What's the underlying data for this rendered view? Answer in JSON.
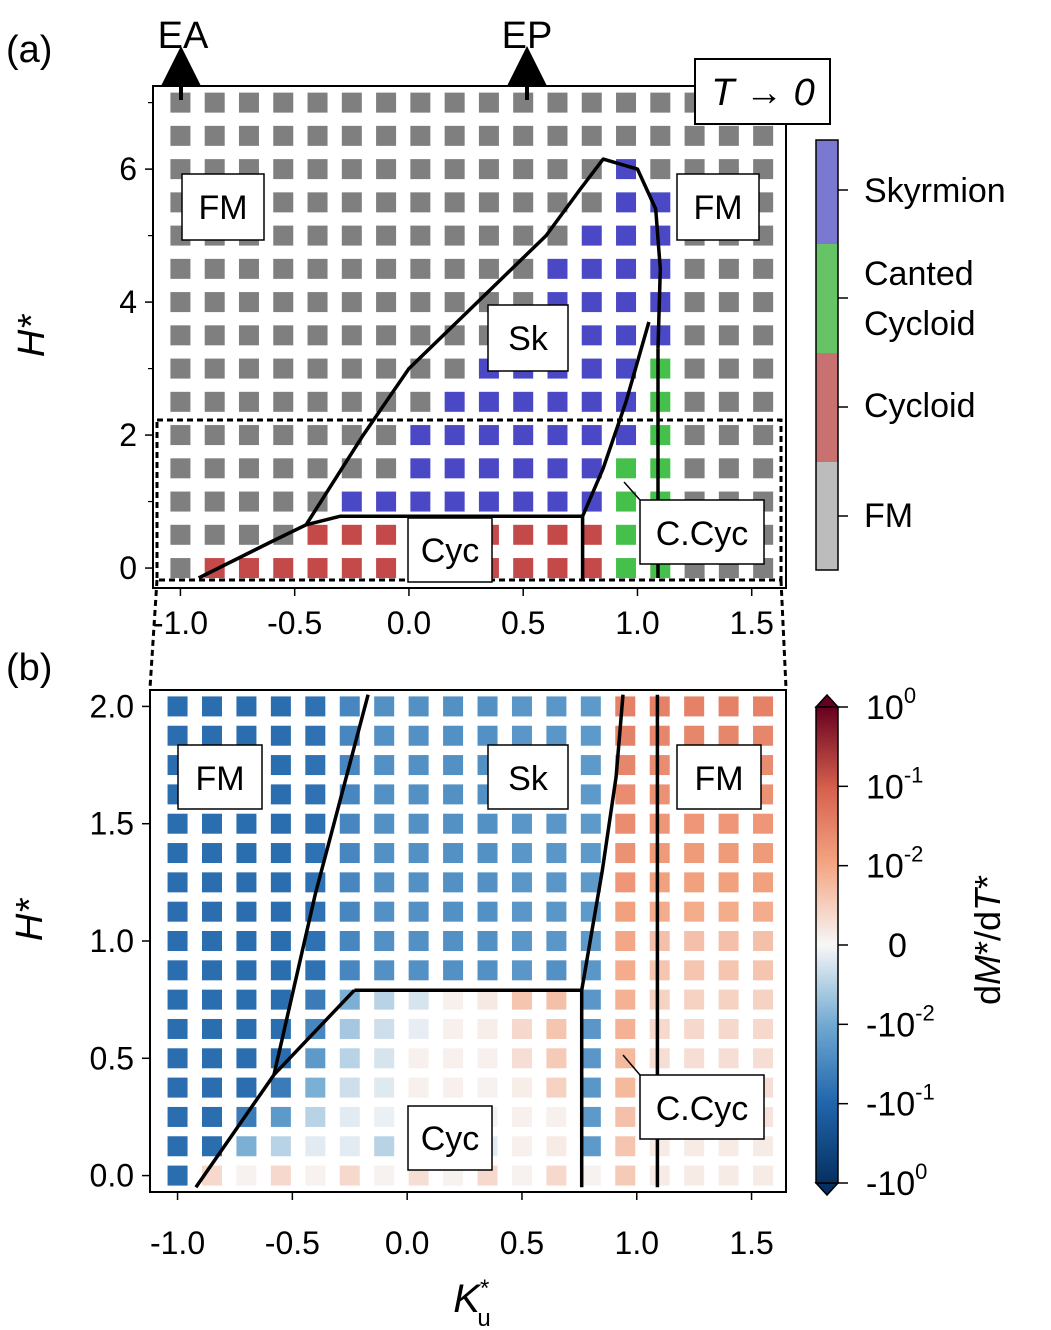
{
  "figure": {
    "panel_a": "(a)",
    "panel_b": "(b)",
    "arrow_labels": [
      "EA",
      "EP"
    ],
    "temperature_label": "T → 0"
  },
  "colors": {
    "fm": "#7f7f7f",
    "skyrmion": "#4a48c4",
    "cycloid": "#c44a4a",
    "canted_cycloid": "#45c04a",
    "cb_fm": "#bcbcbc",
    "cb_skyrmion": "#7b78d2",
    "cb_canted": "#66c466",
    "cb_cycloid": "#c97070"
  },
  "chart_data": [
    {
      "type": "heatmap",
      "title": "T → 0",
      "xlabel": "K*u",
      "ylabel": "H*",
      "xlim": [
        -1.12,
        1.65
      ],
      "ylim": [
        -0.3,
        7.25
      ],
      "x": [
        -1.0,
        -0.85,
        -0.7,
        -0.55,
        -0.4,
        -0.25,
        -0.1,
        0.05,
        0.2,
        0.35,
        0.5,
        0.65,
        0.8,
        0.95,
        1.1,
        1.25,
        1.4,
        1.55
      ],
      "y": [
        0,
        0.5,
        1.0,
        1.5,
        2.0,
        2.5,
        3.0,
        3.5,
        4.0,
        4.5,
        5.0,
        5.5,
        6.0,
        6.5,
        7.0
      ],
      "x_ticks": [
        -1.0,
        -0.5,
        0.0,
        0.5,
        1.0,
        1.5
      ],
      "x_tick_labels": [
        "-1.0",
        "-0.5",
        "0.0",
        "0.5",
        "1.0",
        "1.5"
      ],
      "y_ticks": [
        0,
        2,
        4,
        6
      ],
      "y_tick_labels": [
        "0",
        "2",
        "4",
        "6"
      ],
      "phase_codes": {
        "F": "FM",
        "S": "Skyrmion",
        "C": "Cycloid",
        "G": "Canted Cycloid"
      },
      "phase_grid": [
        "FCCCCCCCCCCCCGGFFF",
        "FFFFCCCCCCCCCGGFFF",
        "FFFFFSSSSSSSSGGFFF",
        "FFFFFFFSSSSSSGGFFF",
        "FFFFFFFSSSSSSSGFFF",
        "FFFFFFFFSSSSSSGFFF",
        "FFFFFFFFFSSSSSGFFF",
        "FFFFFFFFFFSSSSSFFF",
        "FFFFFFFFFFFSSSSFFF",
        "FFFFFFFFFFFSSSSFFF",
        "FFFFFFFFFFFFSSSFFF",
        "FFFFFFFFFFFFFSSFFF",
        "FFFFFFFFFFFFFSFFFF",
        "FFFFFFFFFFFFFFFFFF",
        "FFFFFFFFFFFFFFFFFF"
      ],
      "phase_labels": [
        "FM",
        "FM",
        "Sk",
        "Cyc",
        "C.Cyc"
      ],
      "colorbar": {
        "labels": [
          "Skyrmion",
          "Canted",
          "Cycloid",
          "Cycloid",
          "FM"
        ]
      },
      "boundaries": [
        {
          "name": "cycloid-skyrmion",
          "x": [
            -0.92,
            -0.6,
            -0.45,
            -0.3,
            0.0,
            0.5,
            0.76
          ],
          "y": [
            -0.15,
            0.4,
            0.65,
            0.78,
            0.78,
            0.78,
            0.78
          ]
        },
        {
          "name": "skyrmion-fm",
          "x": [
            -0.45,
            -0.2,
            0.0,
            0.3,
            0.6,
            0.75,
            0.85,
            1.0,
            1.08,
            1.1,
            1.09
          ],
          "y": [
            0.65,
            2.0,
            3.0,
            4.0,
            5.0,
            5.7,
            6.15,
            6.0,
            5.4,
            4.5,
            3.3
          ]
        },
        {
          "name": "cycloid-canted",
          "x": [
            0.76,
            0.76
          ],
          "y": [
            0.78,
            -0.2
          ]
        },
        {
          "name": "canted-skyrmion",
          "x": [
            0.76,
            0.85,
            0.95,
            1.05
          ],
          "y": [
            0.78,
            1.5,
            2.5,
            3.7
          ]
        },
        {
          "name": "canted-fm",
          "x": [
            1.09,
            1.09
          ],
          "y": [
            3.3,
            -0.15
          ]
        }
      ]
    },
    {
      "type": "heatmap",
      "xlabel": "K*u",
      "ylabel": "H*",
      "xlim": [
        -1.12,
        1.65
      ],
      "ylim": [
        -0.07,
        2.07
      ],
      "x": [
        -1.0,
        -0.85,
        -0.7,
        -0.55,
        -0.4,
        -0.25,
        -0.1,
        0.05,
        0.2,
        0.35,
        0.5,
        0.65,
        0.8,
        0.95,
        1.1,
        1.25,
        1.4,
        1.55
      ],
      "y": [
        0.0,
        0.125,
        0.25,
        0.375,
        0.5,
        0.625,
        0.75,
        0.875,
        1.0,
        1.125,
        1.25,
        1.375,
        1.5,
        1.625,
        1.75,
        1.875,
        2.0
      ],
      "x_ticks": [
        -1.0,
        -0.5,
        0.0,
        0.5,
        1.0,
        1.5
      ],
      "x_tick_labels": [
        "-1.0",
        "-0.5",
        "0.0",
        "0.5",
        "1.0",
        "1.5"
      ],
      "y_ticks": [
        0.0,
        0.5,
        1.0,
        1.5,
        2.0
      ],
      "y_tick_labels": [
        "0.0",
        "0.5",
        "1.0",
        "1.5",
        "2.0"
      ],
      "colorbar_label": "dM*/dT*",
      "colorbar_ticks": [
        "10^0",
        "10^-1",
        "10^-2",
        "0",
        "-10^-2",
        "-10^-1",
        "-10^0"
      ],
      "phase_labels": [
        "FM",
        "Sk",
        "FM",
        "Cyc",
        "C.Cyc"
      ],
      "value_note": "symlog colour value s in [-1, 1]: -1 = -10^0, 0 = 0, +1 = 10^0",
      "values": [
        [
          -0.62,
          0.12,
          0.02,
          0.12,
          0.02,
          0.12,
          0.02,
          0.1,
          0.02,
          0.12,
          0.02,
          0.12,
          0.02,
          0.18,
          0.05,
          0.05,
          0.05,
          0.05
        ],
        [
          -0.62,
          -0.62,
          -0.3,
          -0.15,
          -0.05,
          -0.05,
          -0.15,
          -0.1,
          -0.03,
          -0.05,
          0.03,
          0.05,
          -0.4,
          0.2,
          0.05,
          0.05,
          0.05,
          0.05
        ],
        [
          -0.62,
          -0.62,
          -0.55,
          -0.4,
          -0.15,
          -0.05,
          -0.03,
          0.02,
          0.02,
          0.02,
          0.03,
          0.03,
          -0.4,
          0.22,
          0.08,
          0.08,
          0.08,
          0.08
        ],
        [
          -0.62,
          -0.62,
          -0.62,
          -0.55,
          -0.3,
          -0.1,
          -0.06,
          0.03,
          0.03,
          0.02,
          0.04,
          0.15,
          -0.42,
          0.25,
          0.1,
          0.1,
          0.1,
          0.1
        ],
        [
          -0.62,
          -0.62,
          -0.62,
          -0.62,
          -0.4,
          -0.15,
          -0.08,
          0.03,
          0.03,
          0.03,
          0.1,
          0.18,
          -0.42,
          0.25,
          0.1,
          0.1,
          0.1,
          0.1
        ],
        [
          -0.62,
          -0.62,
          -0.62,
          -0.62,
          -0.5,
          -0.2,
          -0.1,
          -0.04,
          0.03,
          0.04,
          0.12,
          0.2,
          -0.42,
          0.28,
          0.12,
          0.12,
          0.12,
          0.12
        ],
        [
          -0.62,
          -0.62,
          -0.62,
          -0.62,
          -0.55,
          -0.3,
          -0.15,
          -0.08,
          0.03,
          0.06,
          0.2,
          0.22,
          -0.42,
          0.28,
          0.15,
          0.15,
          0.15,
          0.15
        ],
        [
          -0.62,
          -0.62,
          -0.62,
          -0.62,
          -0.6,
          -0.5,
          -0.45,
          -0.45,
          -0.45,
          -0.45,
          -0.42,
          -0.45,
          -0.42,
          0.3,
          0.2,
          0.2,
          0.2,
          0.2
        ],
        [
          -0.62,
          -0.62,
          -0.62,
          -0.62,
          -0.6,
          -0.5,
          -0.45,
          -0.45,
          -0.45,
          -0.45,
          -0.42,
          -0.42,
          -0.4,
          0.32,
          0.22,
          0.22,
          0.22,
          0.22
        ],
        [
          -0.62,
          -0.62,
          -0.62,
          -0.62,
          -0.6,
          -0.5,
          -0.45,
          -0.45,
          -0.45,
          -0.45,
          -0.42,
          -0.42,
          -0.4,
          0.35,
          0.3,
          0.3,
          0.3,
          0.3
        ],
        [
          -0.62,
          -0.62,
          -0.62,
          -0.62,
          -0.6,
          -0.5,
          -0.45,
          -0.45,
          -0.45,
          -0.45,
          -0.42,
          -0.42,
          -0.4,
          0.4,
          0.35,
          0.35,
          0.35,
          0.35
        ],
        [
          -0.62,
          -0.62,
          -0.62,
          -0.62,
          -0.6,
          -0.5,
          -0.45,
          -0.45,
          -0.45,
          -0.45,
          -0.42,
          -0.42,
          -0.4,
          0.42,
          0.38,
          0.38,
          0.38,
          0.38
        ],
        [
          -0.62,
          -0.62,
          -0.62,
          -0.62,
          -0.6,
          -0.5,
          -0.45,
          -0.45,
          -0.45,
          -0.45,
          -0.42,
          -0.42,
          -0.4,
          0.45,
          0.4,
          0.4,
          0.4,
          0.4
        ],
        [
          -0.62,
          -0.62,
          -0.62,
          -0.62,
          -0.6,
          -0.5,
          -0.45,
          -0.45,
          -0.45,
          -0.45,
          -0.42,
          -0.42,
          -0.4,
          0.45,
          0.42,
          0.42,
          0.42,
          0.42
        ],
        [
          -0.62,
          -0.62,
          -0.62,
          -0.62,
          -0.6,
          -0.5,
          -0.45,
          -0.45,
          -0.45,
          -0.45,
          -0.42,
          -0.42,
          -0.4,
          0.48,
          0.45,
          0.45,
          0.45,
          0.45
        ],
        [
          -0.62,
          -0.62,
          -0.62,
          -0.62,
          -0.6,
          -0.5,
          -0.45,
          -0.45,
          -0.45,
          -0.45,
          -0.42,
          -0.42,
          -0.4,
          0.5,
          0.48,
          0.48,
          0.48,
          0.48
        ],
        [
          -0.62,
          -0.62,
          -0.62,
          -0.62,
          -0.6,
          -0.5,
          -0.45,
          -0.45,
          -0.45,
          -0.45,
          -0.42,
          -0.42,
          -0.4,
          0.5,
          0.5,
          0.5,
          0.5,
          0.5
        ]
      ],
      "boundaries": [
        {
          "name": "fm-skyrmion",
          "x": [
            -0.58,
            -0.4,
            -0.17
          ],
          "y": [
            0.43,
            1.2,
            2.05
          ]
        },
        {
          "name": "fm-cycloid",
          "x": [
            -0.92,
            -0.58,
            -0.23
          ],
          "y": [
            -0.05,
            0.43,
            0.79
          ]
        },
        {
          "name": "cycloid-skyrmion",
          "x": [
            -0.23,
            0.3,
            0.76
          ],
          "y": [
            0.79,
            0.79,
            0.79
          ]
        },
        {
          "name": "cycloid-canted",
          "x": [
            0.76,
            0.76
          ],
          "y": [
            0.79,
            -0.05
          ]
        },
        {
          "name": "skyrmion-canted",
          "x": [
            0.76,
            0.85,
            0.91,
            0.94
          ],
          "y": [
            0.79,
            1.3,
            1.7,
            2.05
          ]
        },
        {
          "name": "canted-fm",
          "x": [
            1.09,
            1.09
          ],
          "y": [
            2.05,
            -0.05
          ]
        }
      ]
    }
  ]
}
